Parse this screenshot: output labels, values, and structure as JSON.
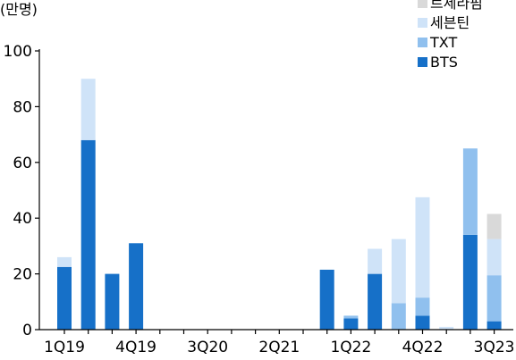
{
  "chart_data": {
    "type": "bar",
    "stacked": true,
    "unit_label": "(만명)",
    "title": "",
    "xlabel": "",
    "ylabel": "",
    "ylim": [
      0,
      100
    ],
    "yticks": [
      0,
      20,
      40,
      60,
      80,
      100
    ],
    "grid": false,
    "legend_position": "top-right",
    "categories": [
      "1Q19",
      "2Q19",
      "3Q19",
      "4Q19",
      "1Q20",
      "2Q20",
      "3Q20",
      "4Q20",
      "1Q21",
      "2Q21",
      "3Q21",
      "4Q21",
      "1Q22",
      "2Q22",
      "3Q22",
      "4Q22",
      "1Q23",
      "2Q23",
      "3Q23"
    ],
    "xtick_labels": [
      "1Q19",
      "4Q19",
      "3Q20",
      "2Q21",
      "1Q22",
      "4Q22",
      "3Q23"
    ],
    "series": [
      {
        "name": "BTS",
        "color": "#1670c8",
        "values": [
          22.5,
          68,
          20,
          31,
          0,
          0,
          0,
          0,
          0,
          0,
          0,
          21.5,
          4,
          20,
          0,
          5,
          0,
          34,
          3
        ]
      },
      {
        "name": "TXT",
        "color": "#90c0ee",
        "values": [
          0,
          0,
          0,
          0,
          0,
          0,
          0,
          0,
          0,
          0,
          0,
          0,
          1,
          0,
          9.5,
          6.5,
          0,
          31,
          16.5
        ]
      },
      {
        "name": "세븐틴",
        "color": "#cfe3f8",
        "values": [
          3.5,
          22,
          0,
          0,
          0,
          0,
          0,
          0,
          0,
          0,
          0,
          0,
          0,
          9,
          23,
          36,
          1,
          0,
          13
        ]
      },
      {
        "name": "르세라핌",
        "color": "#d9d9d9",
        "values": [
          0,
          0,
          0,
          0,
          0,
          0,
          0,
          0,
          0,
          0,
          0,
          0,
          0,
          0,
          0,
          0,
          0,
          0,
          9
        ]
      }
    ]
  }
}
